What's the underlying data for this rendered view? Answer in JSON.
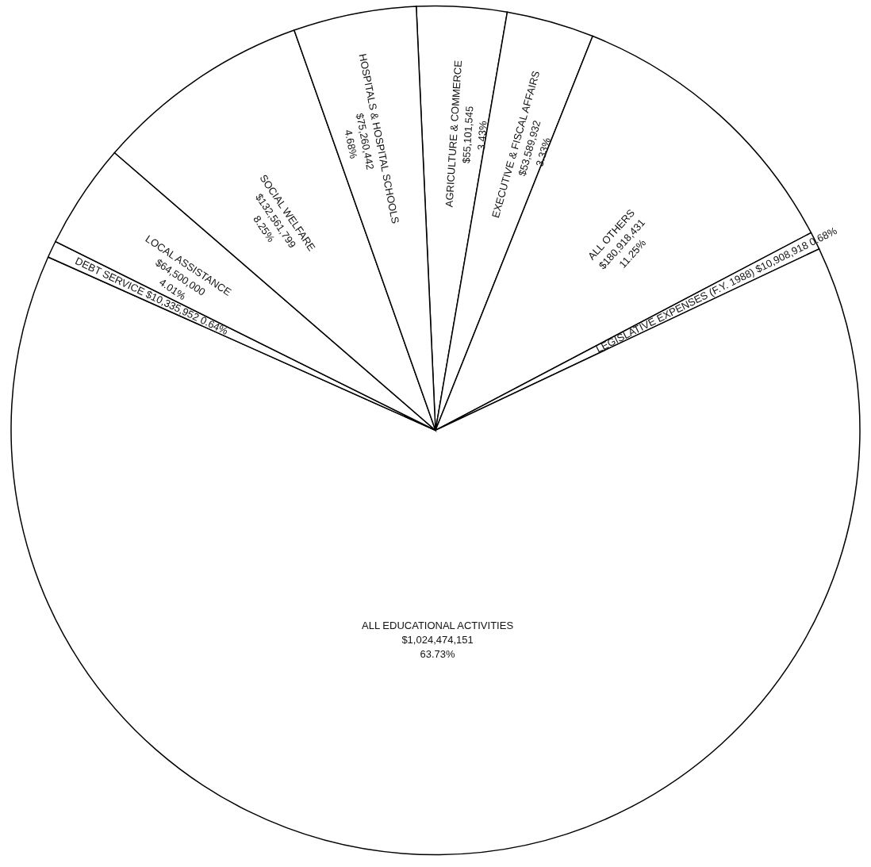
{
  "chart_data": {
    "type": "pie",
    "categories": [
      "AGRICULTURE & COMMERCE",
      "EXECUTIVE & FISCAL AFFAIRS",
      "ALL OTHERS",
      "LEGISLATIVE EXPENSES (F.Y. 1988)",
      "ALL EDUCATIONAL ACTIVITIES",
      "DEBT SERVICE",
      "LOCAL ASSISTANCE",
      "SOCIAL WELFARE",
      "HOSPITALS & HOSPITAL SCHOOLS"
    ],
    "values": [
      55101545,
      53589932,
      180918431,
      10908918,
      1024474151,
      10335952,
      64500000,
      132561799,
      75260442
    ],
    "value_labels": [
      "$55,101,545\n3.43%",
      "$53,589,932\n3.33%",
      "$180,918,431\n11.25%",
      "$10,908,918\n0.68%",
      "$1,024,474,151\n63.73%",
      "$10,335,952\n0.64%",
      "$64,500,000\n4.01%",
      "$132,561,799\n8.25%",
      "$75,260,442\n4.68%"
    ],
    "colors": [
      "#ffffff",
      "#ffffff",
      "#ffffff",
      "#ffffff",
      "#ffffff",
      "#ffffff",
      "#ffffff",
      "#ffffff",
      "#ffffff"
    ]
  }
}
